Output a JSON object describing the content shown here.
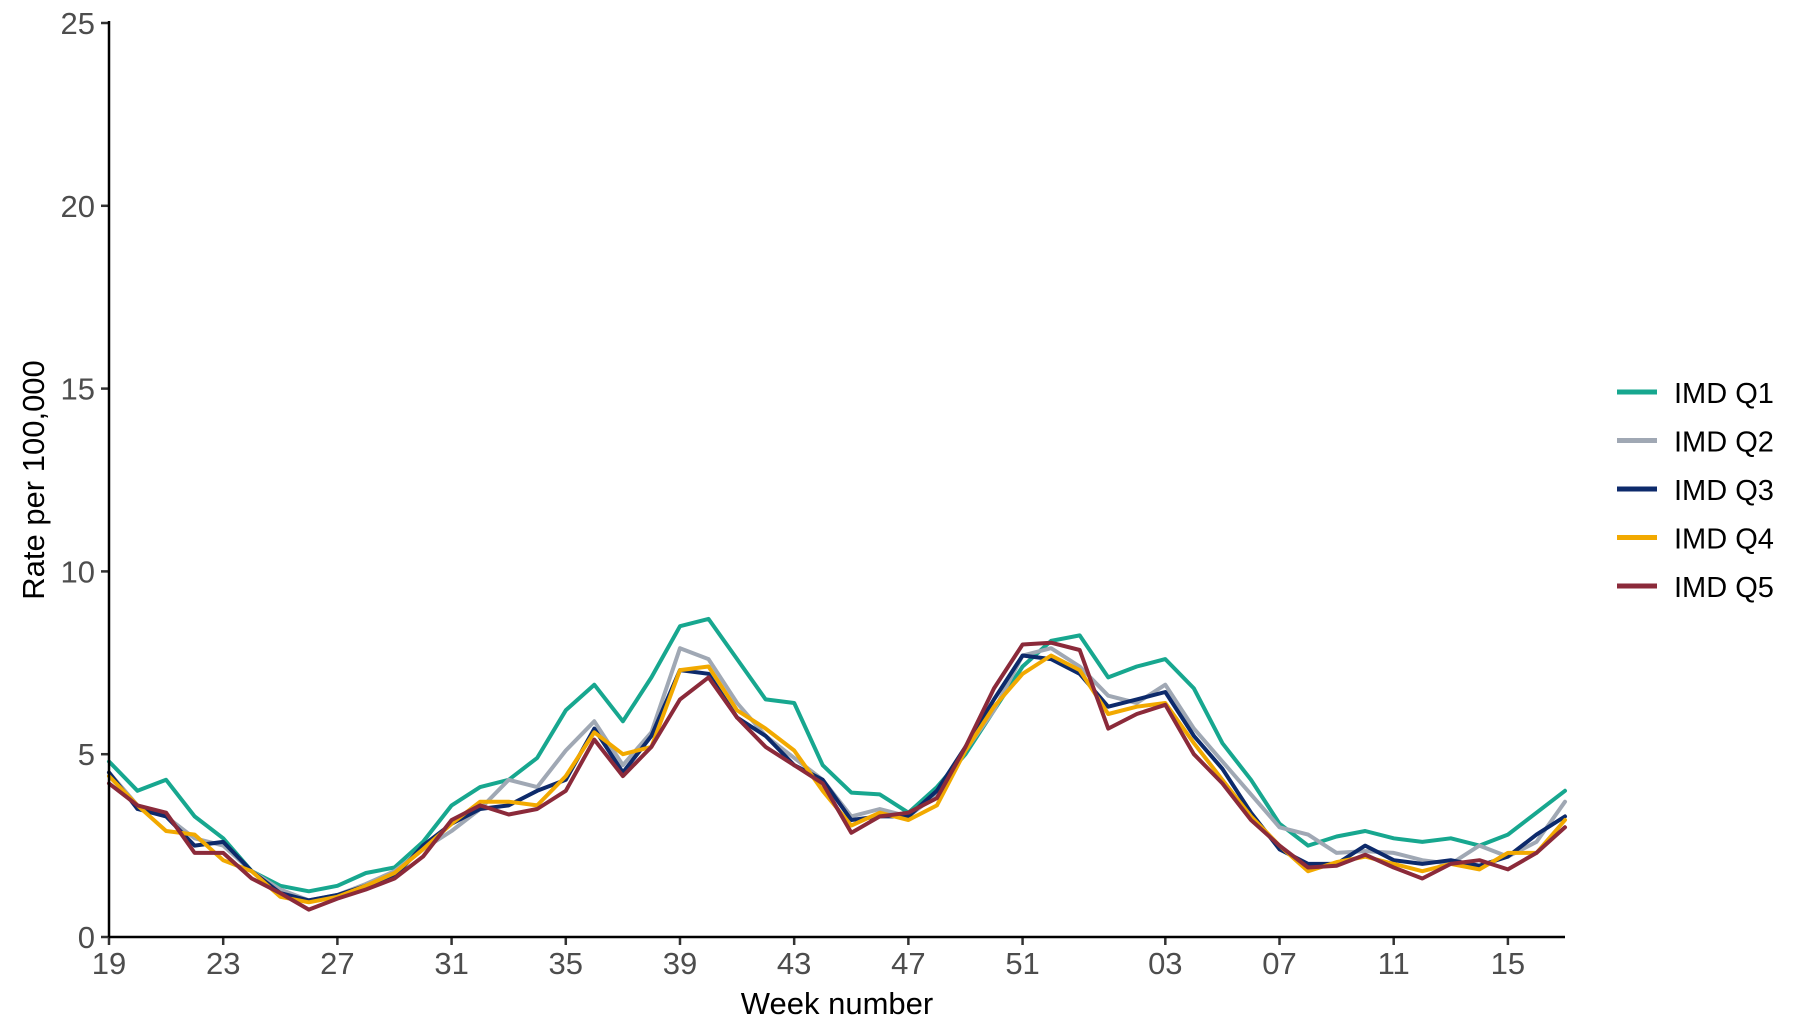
{
  "chart_data": {
    "type": "line",
    "xlabel": "Week number",
    "ylabel": "Rate per 100,000",
    "ylim": [
      0,
      25
    ],
    "y_ticks": [
      0,
      5,
      10,
      15,
      20,
      25
    ],
    "grid": false,
    "legend_position": "right",
    "x": [
      "19",
      "20",
      "21",
      "22",
      "23",
      "24",
      "25",
      "26",
      "27",
      "28",
      "29",
      "30",
      "31",
      "32",
      "33",
      "34",
      "35",
      "36",
      "37",
      "38",
      "39",
      "40",
      "41",
      "42",
      "43",
      "44",
      "45",
      "46",
      "47",
      "48",
      "49",
      "50",
      "51",
      "52",
      "53",
      "01",
      "02",
      "03",
      "04",
      "05",
      "06",
      "07",
      "08",
      "09",
      "10",
      "11",
      "12",
      "13",
      "14",
      "15",
      "16",
      "17"
    ],
    "x_tick_labels": [
      "19",
      "23",
      "27",
      "31",
      "35",
      "39",
      "43",
      "47",
      "51",
      "03",
      "07",
      "11",
      "15"
    ],
    "series": [
      {
        "name": "IMD Q1",
        "color": "#17a78f",
        "values": [
          4.8,
          4.0,
          4.3,
          3.3,
          2.7,
          1.8,
          1.4,
          1.25,
          1.4,
          1.75,
          1.9,
          2.6,
          3.6,
          4.1,
          4.3,
          4.9,
          6.2,
          6.9,
          5.9,
          7.1,
          8.5,
          8.7,
          7.6,
          6.5,
          6.4,
          4.7,
          3.95,
          3.9,
          3.4,
          4.1,
          5.0,
          6.2,
          7.4,
          8.1,
          8.25,
          7.1,
          7.4,
          7.6,
          6.8,
          5.3,
          4.3,
          3.1,
          2.5,
          2.75,
          2.9,
          2.7,
          2.6,
          2.7,
          2.5,
          2.8,
          3.4,
          4.0
        ]
      },
      {
        "name": "IMD Q2",
        "color": "#a0a8b4",
        "values": [
          4.5,
          3.6,
          3.3,
          2.7,
          2.5,
          1.8,
          1.3,
          1.0,
          1.15,
          1.45,
          1.8,
          2.4,
          2.9,
          3.5,
          4.3,
          4.1,
          5.1,
          5.9,
          4.7,
          5.6,
          7.9,
          7.6,
          6.4,
          5.5,
          4.9,
          4.3,
          3.3,
          3.5,
          3.3,
          3.9,
          5.1,
          6.2,
          7.7,
          7.9,
          7.4,
          6.6,
          6.4,
          6.9,
          5.7,
          4.8,
          3.9,
          3.0,
          2.8,
          2.3,
          2.35,
          2.3,
          2.1,
          2.0,
          2.5,
          2.2,
          2.6,
          3.7
        ]
      },
      {
        "name": "IMD Q3",
        "color": "#0d2a6b",
        "values": [
          4.5,
          3.5,
          3.3,
          2.5,
          2.6,
          1.8,
          1.2,
          1.0,
          1.15,
          1.4,
          1.65,
          2.5,
          3.1,
          3.5,
          3.6,
          4.0,
          4.3,
          5.7,
          4.5,
          5.5,
          7.3,
          7.2,
          6.0,
          5.5,
          4.7,
          4.3,
          3.2,
          3.3,
          3.3,
          4.0,
          5.2,
          6.5,
          7.7,
          7.6,
          7.2,
          6.3,
          6.5,
          6.7,
          5.5,
          4.6,
          3.4,
          2.4,
          2.0,
          2.0,
          2.5,
          2.1,
          2.0,
          2.1,
          1.95,
          2.2,
          2.8,
          3.3
        ]
      },
      {
        "name": "IMD Q4",
        "color": "#f2a900",
        "values": [
          4.4,
          3.6,
          2.9,
          2.8,
          2.1,
          1.8,
          1.1,
          0.95,
          1.1,
          1.4,
          1.75,
          2.4,
          3.1,
          3.7,
          3.7,
          3.6,
          4.4,
          5.6,
          5.0,
          5.2,
          7.3,
          7.4,
          6.2,
          5.7,
          5.1,
          4.0,
          3.05,
          3.4,
          3.2,
          3.6,
          5.1,
          6.3,
          7.2,
          7.7,
          7.3,
          6.1,
          6.3,
          6.4,
          5.3,
          4.3,
          3.3,
          2.5,
          1.8,
          2.05,
          2.2,
          2.0,
          1.8,
          2.0,
          1.85,
          2.3,
          2.3,
          3.2
        ]
      },
      {
        "name": "IMD Q5",
        "color": "#8b2a3a",
        "values": [
          4.2,
          3.6,
          3.4,
          2.3,
          2.3,
          1.6,
          1.2,
          0.75,
          1.05,
          1.3,
          1.6,
          2.2,
          3.2,
          3.6,
          3.35,
          3.5,
          4.0,
          5.4,
          4.4,
          5.2,
          6.5,
          7.1,
          6.0,
          5.2,
          4.7,
          4.2,
          2.85,
          3.3,
          3.4,
          3.8,
          5.2,
          6.8,
          8.0,
          8.05,
          7.85,
          5.7,
          6.1,
          6.35,
          5.0,
          4.2,
          3.2,
          2.5,
          1.9,
          1.95,
          2.25,
          1.9,
          1.6,
          2.0,
          2.1,
          1.85,
          2.3,
          3.0
        ]
      }
    ]
  }
}
